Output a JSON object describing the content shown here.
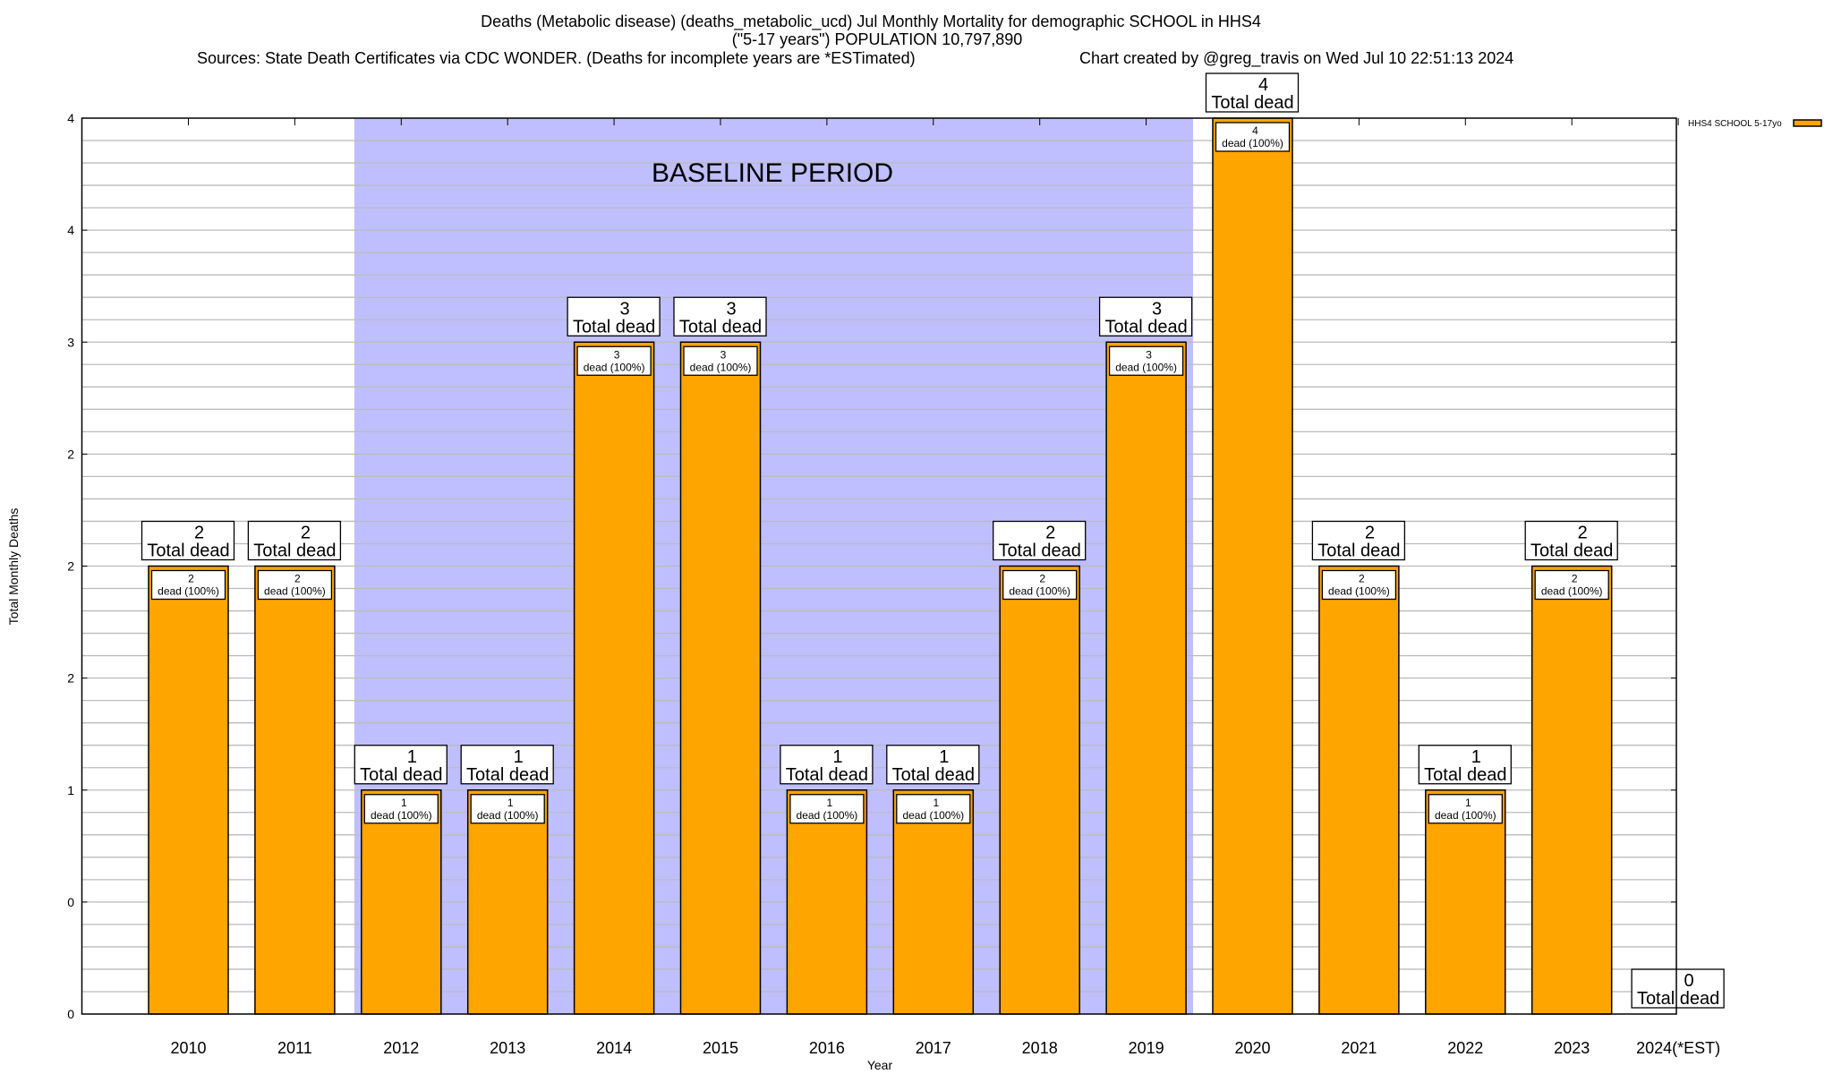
{
  "chart_data": {
    "type": "bar",
    "title": "Deaths (Metabolic disease) (deaths_metabolic_ucd) Jul Monthly Mortality for demographic SCHOOL in HHS4",
    "subtitle": "(\"5-17 years\") POPULATION 10,797,890",
    "sources": "Sources: State Death Certificates via CDC WONDER. (Deaths for incomplete years are *ESTimated)",
    "credit": "Chart created by @greg_travis on Wed Jul 10 22:51:13 2024",
    "xlabel": "Year",
    "ylabel": "Total Monthly Deaths",
    "ylim": [
      0,
      4
    ],
    "ytick_values": [
      0,
      0.5,
      1,
      1.5,
      2,
      2.5,
      3,
      3.5,
      4
    ],
    "ytick_labels": [
      "0",
      "0",
      "1",
      "2",
      "2",
      "2",
      "3",
      "4",
      "4"
    ],
    "grid": true,
    "categories": [
      "2010",
      "2011",
      "2012",
      "2013",
      "2014",
      "2015",
      "2016",
      "2017",
      "2018",
      "2019",
      "2020",
      "2021",
      "2022",
      "2023",
      "2024(*EST)"
    ],
    "series": [
      {
        "name": "HHS4 SCHOOL 5-17yo",
        "color": "#FFA500",
        "values": [
          2,
          2,
          1,
          1,
          3,
          3,
          1,
          1,
          2,
          3,
          4,
          2,
          1,
          2,
          0
        ]
      }
    ],
    "total_label": "Total dead",
    "inner_label": "dead (100%)",
    "inner_percent": "100%",
    "annotation": {
      "text": "BASELINE PERIOD",
      "from": "2012",
      "to": "2019",
      "color": "#BFBFFF"
    },
    "legend_position": "top-right outside"
  }
}
